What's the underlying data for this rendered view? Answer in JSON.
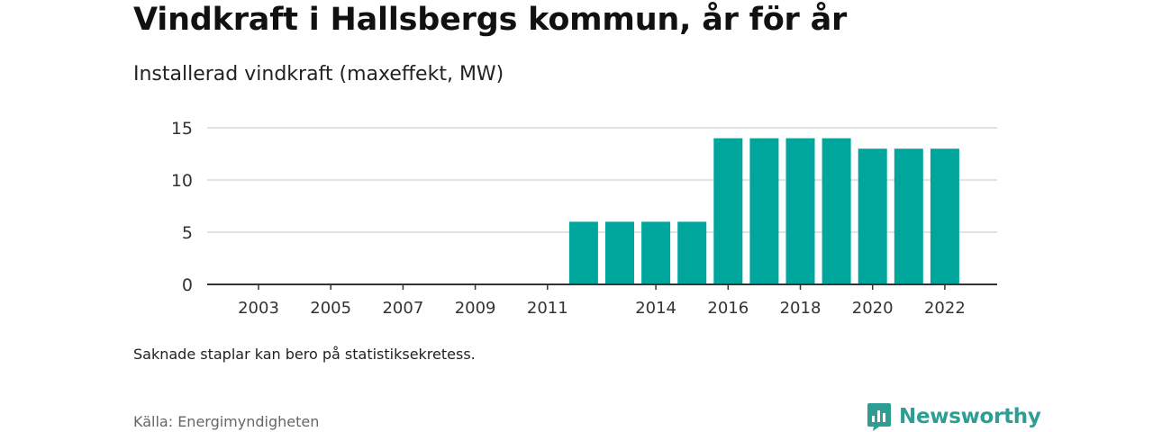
{
  "header": {
    "title": "Vindkraft i Hallsbergs kommun, år för år",
    "subtitle": "Installerad vindkraft (maxeffekt, MW)"
  },
  "footer": {
    "note": "Saknade staplar kan bero på statistiksekretess.",
    "source": "Källa: Energimyndigheten",
    "brand": "Newsworthy"
  },
  "colors": {
    "bar": "#00a69c",
    "brand": "#2e9e95",
    "grid": "#d9d9d9",
    "axis": "#333333"
  },
  "chart_data": {
    "type": "bar",
    "title": "Vindkraft i Hallsbergs kommun, år för år",
    "subtitle": "Installerad vindkraft (maxeffekt, MW)",
    "categories": [
      "2003",
      "2004",
      "2005",
      "2006",
      "2007",
      "2008",
      "2009",
      "2010",
      "2011",
      "2012",
      "2013",
      "2014",
      "2015",
      "2016",
      "2017",
      "2018",
      "2019",
      "2020",
      "2021",
      "2022"
    ],
    "values": [
      0,
      0,
      0,
      0,
      0,
      0,
      0,
      0,
      0,
      6,
      6,
      6,
      6,
      14,
      14,
      14,
      14,
      13,
      13,
      13
    ],
    "x_tick_labels": [
      "2003",
      "2005",
      "2007",
      "2009",
      "2011",
      "2014",
      "2016",
      "2018",
      "2020",
      "2022"
    ],
    "y_ticks": [
      0,
      5,
      10,
      15
    ],
    "ylim": [
      0,
      15
    ],
    "grid": true
  }
}
